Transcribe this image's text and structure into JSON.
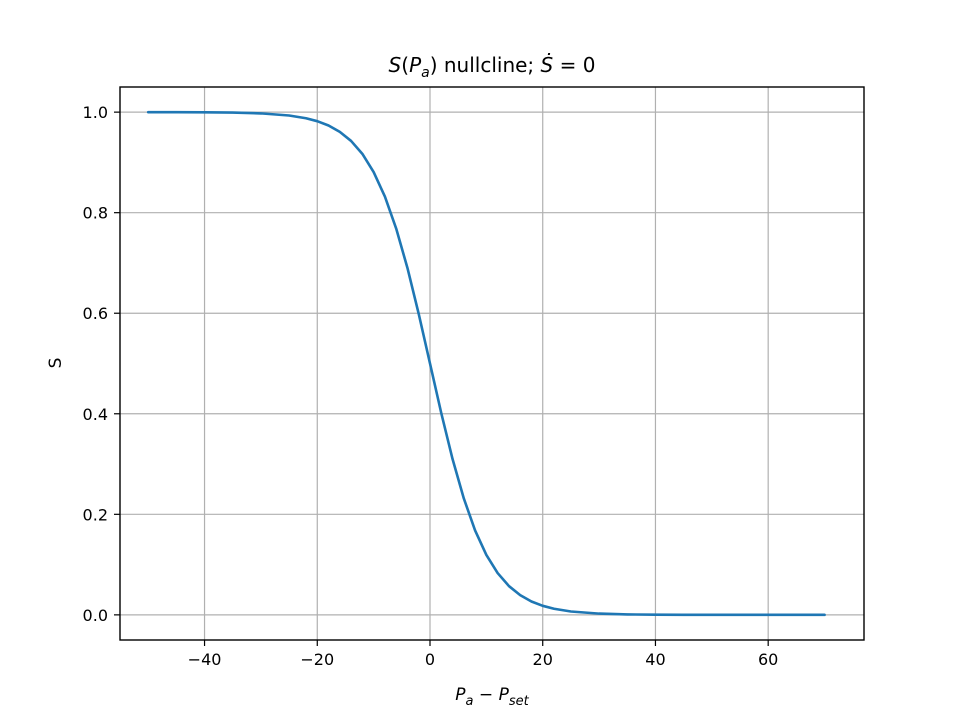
{
  "chart_data": {
    "type": "line",
    "title": "S(Pa) nullcline; Ṡ = 0",
    "xlabel": "Pa − Pset",
    "ylabel": "S",
    "xlim": [
      -55,
      77
    ],
    "ylim": [
      -0.05,
      1.05
    ],
    "grid": true,
    "x_ticks": [
      -40,
      -20,
      0,
      20,
      40,
      60
    ],
    "y_ticks": [
      0.0,
      0.2,
      0.4,
      0.6,
      0.8,
      1.0
    ],
    "x_tick_labels": [
      "−40",
      "−20",
      "0",
      "20",
      "40",
      "60"
    ],
    "y_tick_labels": [
      "0.0",
      "0.2",
      "0.4",
      "0.6",
      "0.8",
      "1.0"
    ],
    "series": [
      {
        "color": "#1f77b4",
        "x": [
          -50,
          -45,
          -40,
          -35,
          -30,
          -25,
          -22,
          -20,
          -18,
          -16,
          -14,
          -12,
          -10,
          -8,
          -6,
          -4,
          -2,
          0,
          2,
          4,
          6,
          8,
          10,
          12,
          14,
          16,
          18,
          20,
          22,
          25,
          30,
          35,
          40,
          45,
          50,
          55,
          60,
          65,
          70
        ],
        "y": [
          1.0,
          0.9999,
          0.9997,
          0.9991,
          0.9975,
          0.9933,
          0.9878,
          0.982,
          0.9734,
          0.9608,
          0.9427,
          0.917,
          0.8808,
          0.832,
          0.7685,
          0.69,
          0.5987,
          0.5,
          0.4013,
          0.31,
          0.2315,
          0.168,
          0.1192,
          0.0832,
          0.0573,
          0.0392,
          0.0266,
          0.018,
          0.0122,
          0.0067,
          0.0025,
          0.0009,
          0.0003,
          0.0001,
          0.0,
          0.0,
          0.0,
          0.0,
          0.0
        ]
      }
    ]
  }
}
